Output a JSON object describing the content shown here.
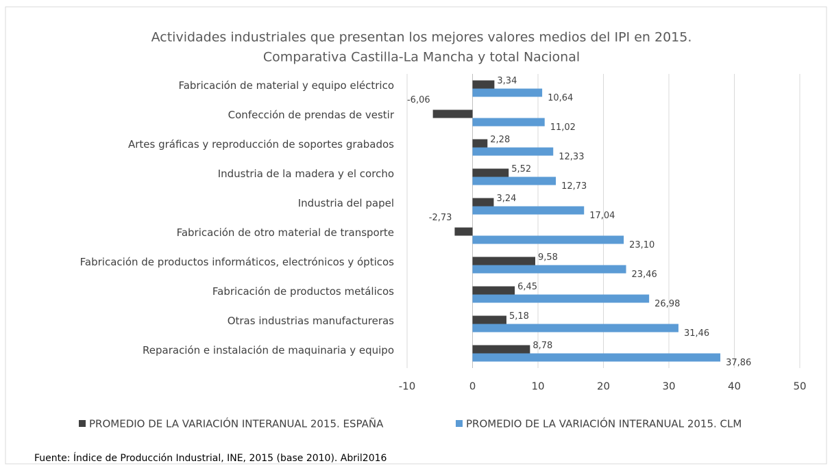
{
  "chart_data": {
    "type": "bar",
    "orientation": "horizontal",
    "title": [
      "Actividades industriales que presentan los mejores valores medios del IPI en 2015.",
      "Comparativa Castilla-La Mancha y total Nacional"
    ],
    "categories": [
      "Fabricación de material y equipo eléctrico",
      "Confección de prendas de vestir",
      "Artes gráficas y reproducción de soportes grabados",
      "Industria de la madera y el corcho",
      "Industria del papel",
      "Fabricación de otro material de transporte",
      "Fabricación de productos informáticos, electrónicos y ópticos",
      "Fabricación de productos metálicos",
      "Otras industrias manufactureras",
      "Reparación e instalación de maquinaria y equipo"
    ],
    "series": [
      {
        "name": "PROMEDIO DE LA VARIACIÓN INTERANUAL 2015. ESPAÑA",
        "color": "#404040",
        "values": [
          3.34,
          -6.06,
          2.28,
          5.52,
          3.24,
          -2.73,
          9.58,
          6.45,
          5.18,
          8.78
        ],
        "value_labels": [
          "3,34",
          "-6,06",
          "2,28",
          "5,52",
          "3,24",
          "-2,73",
          "9,58",
          "6,45",
          "5,18",
          "8,78"
        ]
      },
      {
        "name": "PROMEDIO DE LA VARIACIÓN INTERANUAL 2015. CLM",
        "color": "#5b9bd5",
        "values": [
          10.64,
          11.02,
          12.33,
          12.73,
          17.04,
          23.1,
          23.46,
          26.98,
          31.46,
          37.86
        ],
        "value_labels": [
          "10,64",
          "11,02",
          "12,33",
          "12,73",
          "17,04",
          "23,10",
          "23,46",
          "26,98",
          "31,46",
          "37,86"
        ]
      }
    ],
    "xlim": [
      -10,
      50
    ],
    "xticks": [
      -10,
      0,
      10,
      20,
      30,
      40,
      50
    ],
    "grid": true,
    "legend": "bottom",
    "source": "Fuente: Índice de Producción Industrial, INE, 2015 (base 2010). Abril2016"
  }
}
